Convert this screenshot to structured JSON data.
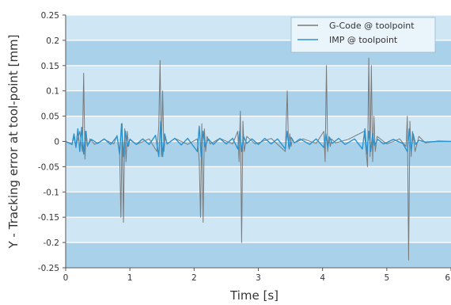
{
  "chart_data": {
    "type": "line",
    "title": "",
    "xlabel": "Time [s]",
    "ylabel": "Y - Tracking error at tool-point [mm]",
    "xlim": [
      0,
      6
    ],
    "ylim": [
      -0.25,
      0.25
    ],
    "x_ticks": [
      {
        "value": 0,
        "label": "0"
      },
      {
        "value": 1,
        "label": "1"
      },
      {
        "value": 2,
        "label": "2"
      },
      {
        "value": 3,
        "label": "3"
      },
      {
        "value": 4,
        "label": "4"
      },
      {
        "value": 5,
        "label": "5"
      },
      {
        "value": 6,
        "label": "6"
      }
    ],
    "y_ticks": [
      {
        "value": 0.25,
        "label": "0.25"
      },
      {
        "value": 0.2,
        "label": "0.2"
      },
      {
        "value": 0.15,
        "label": "0.15"
      },
      {
        "value": 0.1,
        "label": "0.1"
      },
      {
        "value": 0.05,
        "label": "0.05"
      },
      {
        "value": 0,
        "label": "0"
      },
      {
        "value": -0.05,
        "label": "-0.05"
      },
      {
        "value": -0.1,
        "label": "-0.1"
      },
      {
        "value": -0.15,
        "label": "-0.15"
      },
      {
        "value": -0.2,
        "label": "-0.2"
      },
      {
        "value": -0.25,
        "label": "-0.25"
      }
    ],
    "grid": true,
    "background_bands": [
      "#cfe6f5",
      "#a9d1ea"
    ],
    "legend_position": "top-right",
    "series": [
      {
        "name": "G-Code @ toolpoint",
        "color": "#7a7a7a",
        "x": [
          0,
          0.1,
          0.12,
          0.16,
          0.22,
          0.26,
          0.28,
          0.3,
          0.32,
          0.34,
          0.38,
          0.45,
          0.6,
          0.75,
          0.8,
          0.84,
          0.86,
          0.88,
          0.9,
          0.92,
          0.94,
          0.96,
          0.98,
          1.0,
          1.1,
          1.3,
          1.42,
          1.45,
          1.47,
          1.49,
          1.51,
          1.53,
          1.55,
          1.58,
          1.7,
          1.9,
          2.05,
          2.08,
          2.1,
          2.12,
          2.14,
          2.16,
          2.18,
          2.2,
          2.25,
          2.4,
          2.6,
          2.68,
          2.7,
          2.72,
          2.74,
          2.76,
          2.78,
          2.82,
          2.95,
          3.2,
          3.42,
          3.45,
          3.47,
          3.49,
          3.51,
          3.53,
          3.56,
          3.7,
          3.9,
          4.02,
          4.04,
          4.06,
          4.08,
          4.1,
          4.12,
          4.14,
          4.2,
          4.4,
          4.65,
          4.7,
          4.72,
          4.74,
          4.76,
          4.78,
          4.8,
          4.82,
          4.85,
          5.0,
          5.2,
          5.3,
          5.32,
          5.34,
          5.36,
          5.38,
          5.4,
          5.44,
          5.5,
          5.6,
          5.8,
          6.0
        ],
        "y": [
          0,
          -0.005,
          0.01,
          -0.01,
          0.02,
          -0.02,
          0.135,
          -0.035,
          0.02,
          -0.01,
          0.005,
          -0.006,
          0.004,
          -0.005,
          0.012,
          -0.02,
          -0.15,
          0.035,
          -0.16,
          0.025,
          -0.04,
          0.02,
          -0.01,
          0.005,
          -0.006,
          0.005,
          -0.02,
          0.03,
          0.16,
          -0.03,
          0.1,
          -0.02,
          0.01,
          -0.005,
          0.006,
          -0.006,
          0.005,
          -0.04,
          -0.15,
          0.035,
          -0.16,
          0.025,
          -0.02,
          0.01,
          -0.005,
          0.006,
          -0.005,
          0.02,
          -0.04,
          0.06,
          -0.2,
          0.04,
          -0.02,
          0.01,
          -0.005,
          0.006,
          -0.02,
          0.1,
          -0.01,
          0.015,
          -0.01,
          0.005,
          -0.003,
          0.005,
          -0.004,
          0.02,
          -0.04,
          0.15,
          -0.02,
          0.01,
          -0.01,
          0.005,
          -0.003,
          0.004,
          0.02,
          -0.05,
          0.165,
          -0.03,
          0.15,
          -0.04,
          0.05,
          -0.02,
          0.01,
          -0.005,
          0.005,
          -0.01,
          0.05,
          -0.235,
          0.04,
          -0.03,
          0.02,
          -0.02,
          0.01,
          -0.003,
          0.001,
          0.0
        ]
      },
      {
        "name": "IMP @ toolpoint",
        "color": "#2a93cf",
        "x": [
          0,
          0.1,
          0.13,
          0.16,
          0.19,
          0.22,
          0.25,
          0.28,
          0.31,
          0.34,
          0.4,
          0.5,
          0.6,
          0.7,
          0.8,
          0.84,
          0.87,
          0.9,
          0.93,
          0.96,
          1.0,
          1.1,
          1.2,
          1.3,
          1.4,
          1.45,
          1.48,
          1.51,
          1.54,
          1.58,
          1.7,
          1.8,
          1.9,
          2.05,
          2.08,
          2.11,
          2.14,
          2.17,
          2.22,
          2.3,
          2.4,
          2.5,
          2.6,
          2.68,
          2.71,
          2.74,
          2.77,
          2.82,
          2.9,
          3.0,
          3.1,
          3.2,
          3.3,
          3.42,
          3.45,
          3.48,
          3.51,
          3.56,
          3.65,
          3.8,
          3.9,
          4.02,
          4.05,
          4.08,
          4.11,
          4.15,
          4.25,
          4.35,
          4.5,
          4.62,
          4.66,
          4.69,
          4.72,
          4.75,
          4.78,
          4.81,
          4.86,
          4.95,
          5.1,
          5.25,
          5.32,
          5.35,
          5.38,
          5.41,
          5.45,
          5.5,
          5.6,
          5.8,
          6.0
        ],
        "y": [
          0,
          -0.006,
          0.015,
          -0.012,
          0.025,
          -0.02,
          0.028,
          -0.025,
          0.02,
          -0.008,
          0.004,
          -0.004,
          0.005,
          -0.006,
          0.01,
          -0.025,
          0.035,
          -0.03,
          0.02,
          -0.01,
          0.004,
          -0.006,
          0.005,
          -0.006,
          0.012,
          -0.03,
          0.04,
          -0.03,
          0.015,
          -0.005,
          0.006,
          -0.007,
          0.006,
          -0.02,
          0.03,
          -0.03,
          0.02,
          -0.01,
          0.005,
          -0.006,
          0.006,
          -0.005,
          0.006,
          -0.015,
          0.02,
          -0.02,
          0.01,
          -0.004,
          0.005,
          -0.006,
          0.006,
          -0.005,
          0.005,
          -0.015,
          0.02,
          -0.015,
          0.008,
          -0.003,
          0.005,
          -0.006,
          0.005,
          -0.012,
          0.015,
          -0.012,
          0.008,
          -0.004,
          0.006,
          -0.006,
          0.005,
          -0.015,
          0.025,
          -0.025,
          0.02,
          -0.02,
          0.015,
          -0.008,
          0.004,
          -0.005,
          0.004,
          -0.004,
          -0.02,
          0.025,
          -0.02,
          0.015,
          -0.006,
          0.002,
          -0.001,
          0.0,
          0.0
        ]
      }
    ]
  }
}
